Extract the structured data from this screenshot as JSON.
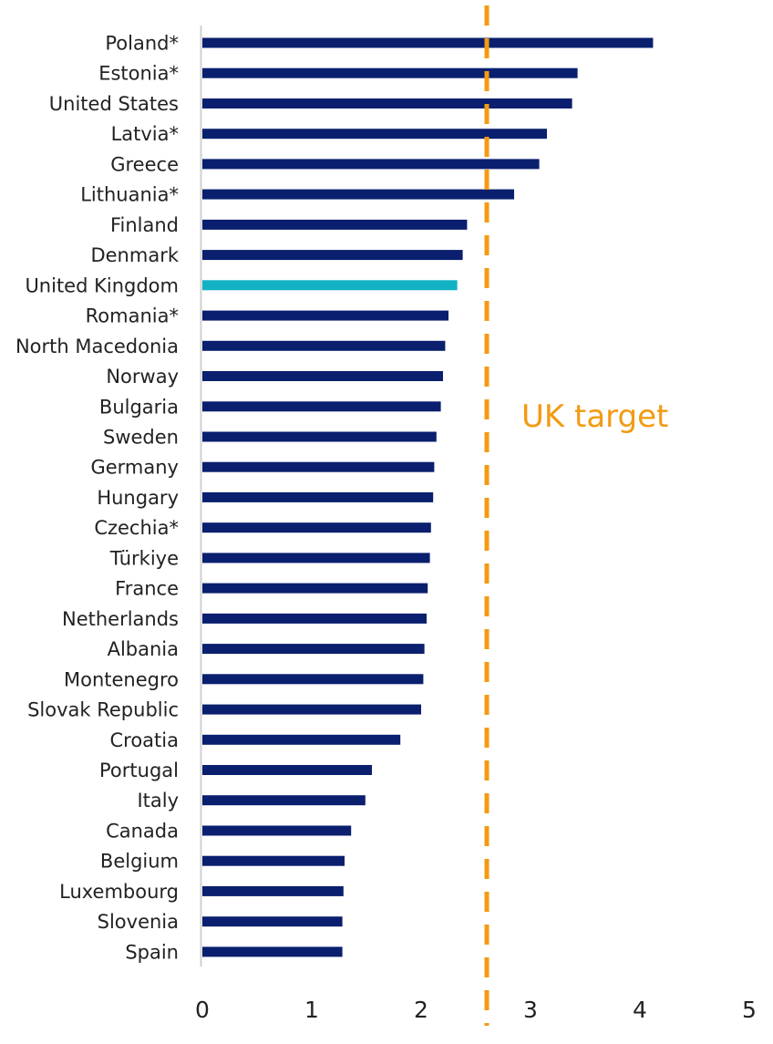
{
  "chart_data": {
    "type": "bar",
    "orientation": "horizontal",
    "categories": [
      "Poland*",
      "Estonia*",
      "United States",
      "Latvia*",
      "Greece",
      "Lithuania*",
      "Finland",
      "Denmark",
      "United Kingdom",
      "Romania*",
      "North Macedonia",
      "Norway",
      "Bulgaria",
      "Sweden",
      "Germany",
      "Hungary",
      "Czechia*",
      "Türkiye",
      "France",
      "Netherlands",
      "Albania",
      "Montenegro",
      "Slovak Republic",
      "Croatia",
      "Portugal",
      "Italy",
      "Canada",
      "Belgium",
      "Luxembourg",
      "Slovenia",
      "Spain"
    ],
    "values": [
      4.12,
      3.43,
      3.38,
      3.15,
      3.08,
      2.85,
      2.42,
      2.38,
      2.33,
      2.25,
      2.22,
      2.2,
      2.18,
      2.14,
      2.12,
      2.11,
      2.09,
      2.08,
      2.06,
      2.05,
      2.03,
      2.02,
      2.0,
      1.81,
      1.55,
      1.49,
      1.36,
      1.3,
      1.29,
      1.28,
      1.28
    ],
    "highlight": "United Kingdom",
    "xlim": [
      0,
      5
    ],
    "xticks": [
      "0",
      "1",
      "2",
      "3",
      "4",
      "5"
    ],
    "target_value": 2.6,
    "target_label": "UK target",
    "grid": false,
    "title": "",
    "xlabel": "",
    "ylabel": ""
  },
  "colors": {
    "bar": "#0a1f6e",
    "highlight": "#12b1c4",
    "target": "#f39a12",
    "axis": "#d0d0d0",
    "text": "#222222"
  }
}
